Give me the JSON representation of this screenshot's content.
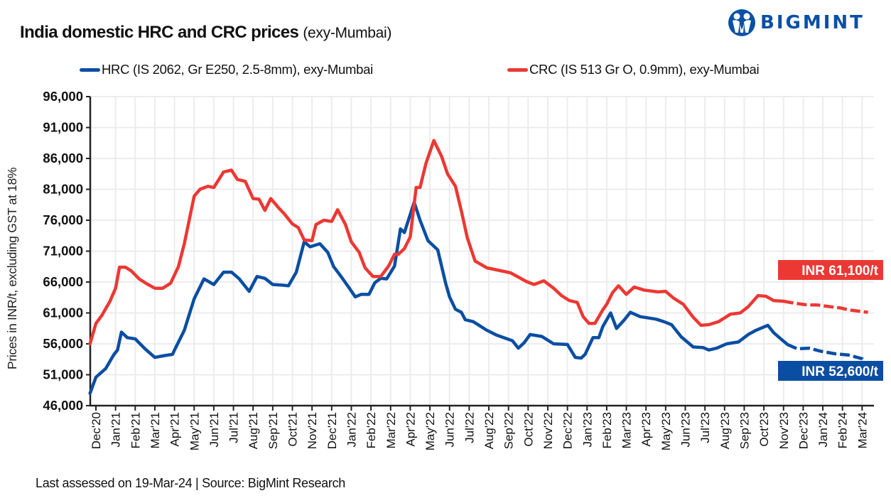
{
  "header": {
    "title": "India domestic HRC and CRC prices",
    "subtitle": "(exy-Mumbai)",
    "logo_text": "BIGMINT",
    "logo_icon": "people-figures-icon"
  },
  "footer": {
    "text": "Last assessed on 19-Mar-24  |  Source: BigMint Research"
  },
  "colors": {
    "hrc": "#0a4ea3",
    "crc": "#ec3833",
    "grid": "#ececec",
    "axis": "#222222",
    "brand": "#0a50a5"
  },
  "chart_data": {
    "type": "line",
    "title": "India domestic HRC and CRC prices (exy-Mumbai)",
    "xlabel": "",
    "ylabel": "Prices in INR/t, excluding GST at 18%",
    "ylim": [
      46000,
      96000
    ],
    "yticks": [
      46000,
      51000,
      56000,
      61000,
      66000,
      71000,
      76000,
      81000,
      86000,
      91000,
      96000
    ],
    "ytick_labels": [
      "46,000",
      "51,000",
      "56,000",
      "61,000",
      "66,000",
      "71,000",
      "76,000",
      "81,000",
      "86,000",
      "91,000",
      "96,000"
    ],
    "x_unit": "months since Dec'20",
    "xlim": [
      -0.3,
      39.6
    ],
    "x_categories": [
      "Dec'20",
      "Jan'21",
      "Feb'21",
      "Mar'21",
      "Apr'21",
      "May'21",
      "Jun'21",
      "Jul'21",
      "Aug'21",
      "Sep'21",
      "Oct'21",
      "Nov'21",
      "Dec'21",
      "Jan'22",
      "Feb'22",
      "Mar'22",
      "Apr'22",
      "May'22",
      "Jun'22",
      "Jul'22",
      "Aug'22",
      "Sep'22",
      "Oct'22",
      "Nov'22",
      "Dec'22",
      "Jan'23",
      "Feb'23",
      "Mar'23",
      "Apr'23",
      "May'23",
      "Jun'23",
      "Jul'23",
      "Aug'23",
      "Sep'23",
      "Oct'23",
      "Nov'23",
      "Dec'23",
      "Jan'24",
      "Feb'24",
      "Mar'24"
    ],
    "grid": true,
    "legend_position": "top",
    "series": [
      {
        "name": "HRC (IS 2062, Gr E250, 2.5-8mm), exy-Mumbai",
        "color": "#0a4ea3",
        "dashed_from_x": 35.2,
        "x": [
          -0.3,
          0,
          0.5,
          0.9,
          1.1,
          1.3,
          1.6,
          2.0,
          2.5,
          3.0,
          3.5,
          3.9,
          4.0,
          4.5,
          5.0,
          5.5,
          6.0,
          6.5,
          6.9,
          7.3,
          7.8,
          8.2,
          8.6,
          9.0,
          9.5,
          9.8,
          10.2,
          10.6,
          10.9,
          11.4,
          11.8,
          12.1,
          12.5,
          12.9,
          13.2,
          13.5,
          13.9,
          14.2,
          14.5,
          14.8,
          15.2,
          15.5,
          15.7,
          16.2,
          16.5,
          16.9,
          17.4,
          17.8,
          18.0,
          18.3,
          18.6,
          18.8,
          19.2,
          19.9,
          20.4,
          21.2,
          21.5,
          21.8,
          22.1,
          22.7,
          23.3,
          24.0,
          24.4,
          24.7,
          24.9,
          25.3,
          25.6,
          25.8,
          26.2,
          26.5,
          26.9,
          27.2,
          27.7,
          28.5,
          28.9,
          29.3,
          29.8,
          30.4,
          30.9,
          31.2,
          31.6,
          32.1,
          32.7,
          33.2,
          33.6,
          34.2,
          34.5,
          34.9,
          35.2,
          35.7,
          36.3,
          36.9,
          37.6,
          38.3,
          39.0,
          39.3
        ],
        "values": [
          48000,
          50600,
          52000,
          54200,
          55000,
          57900,
          57000,
          56800,
          55200,
          53800,
          54100,
          54300,
          55000,
          58200,
          63300,
          66500,
          65600,
          67600,
          67600,
          66500,
          64500,
          66900,
          66600,
          65600,
          65500,
          65400,
          67600,
          72500,
          71700,
          72200,
          70800,
          68500,
          66800,
          65000,
          63600,
          64000,
          64000,
          65900,
          66600,
          66500,
          68600,
          74600,
          74000,
          78900,
          76000,
          72700,
          71200,
          65800,
          63600,
          61600,
          61100,
          59900,
          59600,
          58200,
          57400,
          56500,
          55300,
          56200,
          57500,
          57200,
          56000,
          55900,
          53800,
          53700,
          54300,
          57000,
          57000,
          58800,
          61000,
          58500,
          59900,
          61100,
          60400,
          60000,
          59600,
          59100,
          57100,
          55500,
          55400,
          55000,
          55300,
          56000,
          56300,
          57500,
          58200,
          59000,
          57800,
          56700,
          55900,
          55200,
          55300,
          54800,
          54400,
          54200,
          53600,
          52600
        ]
      },
      {
        "name": "CRC (IS 513 Gr O, 0.9mm), exy-Mumbai",
        "color": "#ec3833",
        "dashed_from_x": 35.0,
        "x": [
          -0.3,
          0,
          0.3,
          0.7,
          1.0,
          1.2,
          1.5,
          1.8,
          2.2,
          2.6,
          3.0,
          3.4,
          3.8,
          4.2,
          4.5,
          5.0,
          5.3,
          5.7,
          6.0,
          6.5,
          6.9,
          7.2,
          7.6,
          8.0,
          8.3,
          8.6,
          8.9,
          9.3,
          9.6,
          10.0,
          10.3,
          10.6,
          11.0,
          11.2,
          11.6,
          12.0,
          12.3,
          12.7,
          13.0,
          13.4,
          13.7,
          14.1,
          14.5,
          14.9,
          15.2,
          15.4,
          15.7,
          16.0,
          16.3,
          16.5,
          16.8,
          17.2,
          17.6,
          17.9,
          18.3,
          18.6,
          18.9,
          19.3,
          19.9,
          20.5,
          21.1,
          21.5,
          21.9,
          22.3,
          22.8,
          23.3,
          23.7,
          24.1,
          24.5,
          24.8,
          25.1,
          25.4,
          25.8,
          26.0,
          26.3,
          26.6,
          27.0,
          27.4,
          27.9,
          28.6,
          29.0,
          29.4,
          29.9,
          30.4,
          30.8,
          31.2,
          31.7,
          32.3,
          32.8,
          33.2,
          33.7,
          34.1,
          34.5,
          35.0,
          35.5,
          36.2,
          36.7,
          37.4,
          37.9,
          38.3,
          38.8,
          39.3
        ],
        "values": [
          56000,
          59300,
          60600,
          62800,
          65000,
          68400,
          68400,
          67800,
          66500,
          65700,
          65000,
          65000,
          65800,
          68500,
          72200,
          79900,
          81000,
          81500,
          81300,
          83800,
          84100,
          82600,
          82300,
          79500,
          79400,
          77600,
          79500,
          78000,
          77000,
          75400,
          74800,
          72800,
          72700,
          75300,
          76000,
          75800,
          77700,
          75300,
          72500,
          70800,
          68300,
          66900,
          66900,
          68600,
          70500,
          70500,
          71400,
          73300,
          81300,
          81300,
          85200,
          88900,
          86300,
          83500,
          81500,
          77500,
          73200,
          69400,
          68300,
          67900,
          67500,
          66800,
          66100,
          65600,
          66200,
          65000,
          63800,
          63000,
          62700,
          60400,
          59300,
          59300,
          61500,
          62400,
          64300,
          65400,
          64000,
          65200,
          64700,
          64400,
          64500,
          63400,
          62400,
          60300,
          59000,
          59100,
          59600,
          60800,
          61000,
          62000,
          63800,
          63700,
          63000,
          62900,
          62600,
          62300,
          62300,
          62000,
          61800,
          61500,
          61300,
          61100
        ]
      }
    ],
    "annotations": [
      {
        "text": "INR 61,100/t",
        "series": "CRC",
        "color": "#ec3833"
      },
      {
        "text": "INR 52,600/t",
        "series": "HRC",
        "color": "#0a4ea3"
      }
    ]
  }
}
